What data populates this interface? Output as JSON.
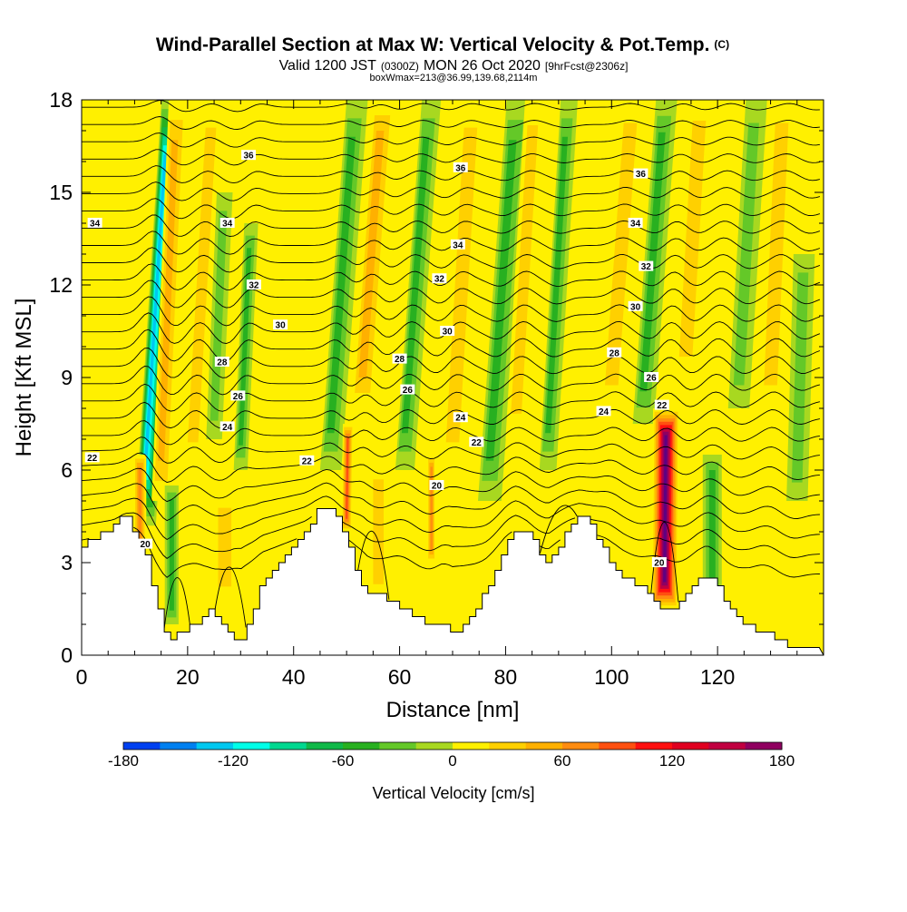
{
  "chart_data": {
    "type": "heatmap",
    "title": "Wind-Parallel Section at Max W: Vertical Velocity & Pot.Temp.",
    "title_mark": "(C)",
    "subtitle": {
      "a": "Valid 1200 JST",
      "b": "(0300Z)",
      "c": "MON 26 Oct 2020",
      "d": "[9hrFcst@2306z]"
    },
    "subtitle2": "boxWmax=213@36.99,139.68,2114m",
    "xlabel": "Distance [nm]",
    "ylabel": "Height [Kft MSL]",
    "xlim": [
      0,
      140
    ],
    "ylim": [
      0,
      18
    ],
    "x_ticks": [
      0,
      20,
      40,
      60,
      80,
      100,
      120
    ],
    "y_ticks": [
      0,
      3,
      6,
      9,
      12,
      15,
      18
    ],
    "grid": false,
    "colorbar": {
      "label": "Vertical Velocity [cm/s]",
      "ticks": [
        -180,
        -120,
        -60,
        0,
        60,
        120,
        180
      ],
      "range": [
        -180,
        180
      ],
      "colors": [
        "#0000ff",
        "#0040f0",
        "#0080f0",
        "#00c8f0",
        "#00ffe8",
        "#00d890",
        "#10b848",
        "#28b020",
        "#64c828",
        "#a8d820",
        "#d8ee00",
        "#fff000",
        "#ffd000",
        "#ffb000",
        "#ff8c10",
        "#ff5010",
        "#ff1010",
        "#e00020",
        "#c00040",
        "#900060",
        "#600080"
      ]
    },
    "velocity_bands": [
      {
        "x": 12,
        "z0": 4.2,
        "z1": 18,
        "w": -130,
        "lean": 2.2,
        "width": 2.0
      },
      {
        "x": 15,
        "z0": 5.0,
        "z1": 18,
        "w": 60,
        "lean": 1.5,
        "width": 1.8
      },
      {
        "x": 11,
        "z0": 3.0,
        "z1": 6.5,
        "w": 70,
        "lean": 0,
        "width": 1.2
      },
      {
        "x": 17,
        "z0": 1.0,
        "z1": 5.5,
        "w": -60,
        "lean": 0,
        "width": 1.3
      },
      {
        "x": 21,
        "z0": 6.0,
        "z1": 18,
        "w": 40,
        "lean": 2.0,
        "width": 2.0
      },
      {
        "x": 25,
        "z0": 7.0,
        "z1": 15,
        "w": -40,
        "lean": 1.5,
        "width": 1.5
      },
      {
        "x": 30,
        "z0": 6.0,
        "z1": 14,
        "w": -50,
        "lean": 1.5,
        "width": 1.3
      },
      {
        "x": 27,
        "z0": 2.0,
        "z1": 5.0,
        "w": 30,
        "lean": 0,
        "width": 2.5
      },
      {
        "x": 47,
        "z0": 6.0,
        "z1": 18,
        "w": -60,
        "lean": 2.5,
        "width": 2.0
      },
      {
        "x": 50,
        "z0": 4.0,
        "z1": 7.5,
        "w": 100,
        "lean": 0.5,
        "width": 1.0
      },
      {
        "x": 53,
        "z0": 8.0,
        "z1": 18,
        "w": 50,
        "lean": 2.5,
        "width": 2.2
      },
      {
        "x": 56,
        "z0": 2.0,
        "z1": 6.0,
        "w": 30,
        "lean": 0,
        "width": 2.0
      },
      {
        "x": 61,
        "z0": 6.0,
        "z1": 18,
        "w": -50,
        "lean": 2.5,
        "width": 1.8
      },
      {
        "x": 66,
        "z0": 3.0,
        "z1": 6.5,
        "w": 80,
        "lean": 0,
        "width": 0.8
      },
      {
        "x": 70,
        "z0": 6.0,
        "z1": 18,
        "w": 40,
        "lean": 2.0,
        "width": 2.5
      },
      {
        "x": 77,
        "z0": 5.0,
        "z1": 18,
        "w": -50,
        "lean": 2.5,
        "width": 2.2
      },
      {
        "x": 82,
        "z0": 7.0,
        "z1": 18,
        "w": 35,
        "lean": 2.0,
        "width": 2.0
      },
      {
        "x": 88,
        "z0": 6.0,
        "z1": 18,
        "w": -50,
        "lean": 2.0,
        "width": 1.6
      },
      {
        "x": 100,
        "z0": 8.0,
        "z1": 18,
        "w": 40,
        "lean": 2.5,
        "width": 2.5
      },
      {
        "x": 106,
        "z0": 7.5,
        "z1": 18,
        "w": -60,
        "lean": 2.5,
        "width": 2.0
      },
      {
        "x": 110,
        "z0": 1.5,
        "z1": 8.0,
        "w": 180,
        "lean": 0.3,
        "width": 2.5
      },
      {
        "x": 114,
        "z0": 9.0,
        "z1": 18,
        "w": 40,
        "lean": 2.0,
        "width": 2.5
      },
      {
        "x": 119,
        "z0": 1.5,
        "z1": 6.5,
        "w": -60,
        "lean": 0,
        "width": 1.8
      },
      {
        "x": 124,
        "z0": 8.0,
        "z1": 18,
        "w": -40,
        "lean": 2.0,
        "width": 2.0
      },
      {
        "x": 130,
        "z0": 8.0,
        "z1": 18,
        "w": 30,
        "lean": 1.5,
        "width": 2.5
      },
      {
        "x": 135,
        "z0": 5.0,
        "z1": 13,
        "w": -30,
        "lean": 1.0,
        "width": 2.0
      }
    ],
    "terrain": [
      [
        0,
        3.6
      ],
      [
        2,
        3.8
      ],
      [
        4,
        4.0
      ],
      [
        6,
        4.2
      ],
      [
        8,
        4.6
      ],
      [
        10,
        4.0
      ],
      [
        12,
        3.2
      ],
      [
        14,
        1.8
      ],
      [
        16,
        0.4
      ],
      [
        18,
        0.8
      ],
      [
        20,
        0.8
      ],
      [
        22,
        1.2
      ],
      [
        24,
        1.4
      ],
      [
        26,
        1.2
      ],
      [
        28,
        0.6
      ],
      [
        30,
        0.4
      ],
      [
        32,
        1.4
      ],
      [
        34,
        2.4
      ],
      [
        36,
        2.8
      ],
      [
        38,
        3.2
      ],
      [
        40,
        3.6
      ],
      [
        42,
        4.0
      ],
      [
        44,
        4.6
      ],
      [
        46,
        4.9
      ],
      [
        48,
        4.6
      ],
      [
        50,
        3.8
      ],
      [
        52,
        2.6
      ],
      [
        54,
        2.0
      ],
      [
        56,
        2.0
      ],
      [
        58,
        1.8
      ],
      [
        60,
        1.6
      ],
      [
        62,
        1.4
      ],
      [
        64,
        1.2
      ],
      [
        66,
        1.0
      ],
      [
        68,
        1.0
      ],
      [
        70,
        0.6
      ],
      [
        72,
        1.0
      ],
      [
        74,
        1.4
      ],
      [
        76,
        2.0
      ],
      [
        78,
        2.8
      ],
      [
        80,
        3.6
      ],
      [
        82,
        4.2
      ],
      [
        84,
        4.0
      ],
      [
        86,
        3.4
      ],
      [
        88,
        3.0
      ],
      [
        90,
        3.6
      ],
      [
        92,
        4.2
      ],
      [
        94,
        4.6
      ],
      [
        96,
        4.2
      ],
      [
        98,
        3.6
      ],
      [
        100,
        3.0
      ],
      [
        102,
        2.6
      ],
      [
        104,
        2.4
      ],
      [
        106,
        2.2
      ],
      [
        108,
        1.8
      ],
      [
        110,
        1.4
      ],
      [
        112,
        1.6
      ],
      [
        114,
        2.0
      ],
      [
        116,
        2.4
      ],
      [
        118,
        2.6
      ],
      [
        120,
        2.2
      ],
      [
        122,
        1.6
      ],
      [
        124,
        1.2
      ],
      [
        126,
        0.9
      ],
      [
        128,
        0.8
      ],
      [
        130,
        0.6
      ],
      [
        132,
        0.4
      ],
      [
        134,
        0.3
      ],
      [
        140,
        0.3
      ]
    ],
    "theta_labels": [
      {
        "x": 2.5,
        "z": 14.0,
        "t": "34"
      },
      {
        "x": 31.5,
        "z": 16.2,
        "t": "36"
      },
      {
        "x": 27.5,
        "z": 14.0,
        "t": "34"
      },
      {
        "x": 32.5,
        "z": 12.0,
        "t": "32"
      },
      {
        "x": 37.5,
        "z": 10.7,
        "t": "30"
      },
      {
        "x": 26.5,
        "z": 9.5,
        "t": "28"
      },
      {
        "x": 29.5,
        "z": 8.4,
        "t": "26"
      },
      {
        "x": 27.5,
        "z": 7.4,
        "t": "24"
      },
      {
        "x": 2.0,
        "z": 6.4,
        "t": "22"
      },
      {
        "x": 42.5,
        "z": 6.3,
        "t": "22"
      },
      {
        "x": 12.0,
        "z": 3.6,
        "t": "20"
      },
      {
        "x": 71.5,
        "z": 15.8,
        "t": "36"
      },
      {
        "x": 71.0,
        "z": 13.3,
        "t": "34"
      },
      {
        "x": 67.5,
        "z": 12.2,
        "t": "32"
      },
      {
        "x": 69.0,
        "z": 10.5,
        "t": "30"
      },
      {
        "x": 60.0,
        "z": 9.6,
        "t": "28"
      },
      {
        "x": 61.5,
        "z": 8.6,
        "t": "26"
      },
      {
        "x": 71.5,
        "z": 7.7,
        "t": "24"
      },
      {
        "x": 74.5,
        "z": 6.9,
        "t": "22"
      },
      {
        "x": 67.0,
        "z": 5.5,
        "t": "20"
      },
      {
        "x": 105.5,
        "z": 15.6,
        "t": "36"
      },
      {
        "x": 104.5,
        "z": 14.0,
        "t": "34"
      },
      {
        "x": 106.5,
        "z": 12.6,
        "t": "32"
      },
      {
        "x": 104.5,
        "z": 11.3,
        "t": "30"
      },
      {
        "x": 100.5,
        "z": 9.8,
        "t": "28"
      },
      {
        "x": 107.5,
        "z": 9.0,
        "t": "26"
      },
      {
        "x": 109.5,
        "z": 8.1,
        "t": "22"
      },
      {
        "x": 98.5,
        "z": 7.9,
        "t": "24"
      },
      {
        "x": 109.0,
        "z": 3.0,
        "t": "20"
      }
    ]
  }
}
